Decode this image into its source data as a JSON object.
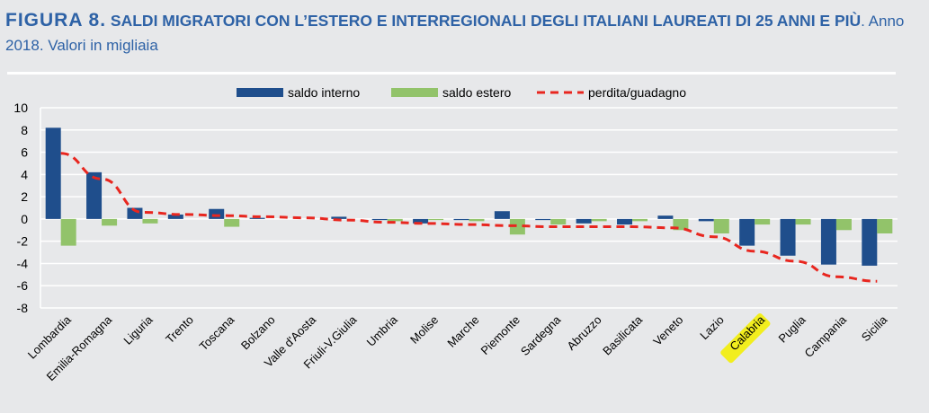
{
  "figure": {
    "label": "FIGURA 8.",
    "title": " SALDI MIGRATORI CON L’ESTERO E INTERREGIONALI DEGLI ITALIANI LAUREATI DI 25 ANNI E PIÙ",
    "subtitle": ". Anno 2018. Valori in migliaia"
  },
  "colors": {
    "saldo_interno": "#1f4e8c",
    "saldo_estero": "#92c36a",
    "perdita_guadagno": "#e8261f",
    "highlight": "#f2ee1e",
    "grid": "#ffffff"
  },
  "chart_data": {
    "type": "bar",
    "categories": [
      "Lombardia",
      "Emilia-Romagna",
      "Liguria",
      "Trento",
      "Toscana",
      "Bolzano",
      "Valle d'Aosta",
      "Friuli-V.Giulia",
      "Umbria",
      "Molise",
      "Marche",
      "Piemonte",
      "Sardegna",
      "Abruzzo",
      "Basilicata",
      "Veneto",
      "Lazio",
      "Calabria",
      "Puglia",
      "Campania",
      "Sicilia"
    ],
    "highlighted_category": "Calabria",
    "series": [
      {
        "name": "saldo interno",
        "kind": "bar",
        "values": [
          8.2,
          4.2,
          1.0,
          0.4,
          0.9,
          0.1,
          0.0,
          0.2,
          -0.1,
          -0.4,
          -0.1,
          0.7,
          -0.1,
          -0.4,
          -0.5,
          0.3,
          -0.2,
          -2.4,
          -3.3,
          -4.1,
          -4.2
        ]
      },
      {
        "name": "saldo estero",
        "kind": "bar",
        "values": [
          -2.4,
          -0.6,
          -0.4,
          0.0,
          -0.7,
          0.0,
          0.0,
          0.0,
          -0.2,
          -0.1,
          -0.2,
          -1.4,
          -0.5,
          -0.2,
          -0.2,
          -1.0,
          -1.3,
          -0.5,
          -0.5,
          -1.0,
          -1.3
        ]
      },
      {
        "name": "perdita/guadagno",
        "kind": "line",
        "style": "dashed",
        "values": [
          5.9,
          3.6,
          0.6,
          0.4,
          0.3,
          0.2,
          0.1,
          -0.1,
          -0.3,
          -0.4,
          -0.5,
          -0.6,
          -0.7,
          -0.7,
          -0.7,
          -0.8,
          -1.6,
          -2.9,
          -3.8,
          -5.2,
          -5.6
        ]
      }
    ],
    "yticks": [
      10,
      8,
      6,
      4,
      2,
      0,
      -2,
      -4,
      -6,
      -8
    ],
    "ylim": [
      -8,
      10
    ],
    "grid": true,
    "legend": "top-center"
  }
}
